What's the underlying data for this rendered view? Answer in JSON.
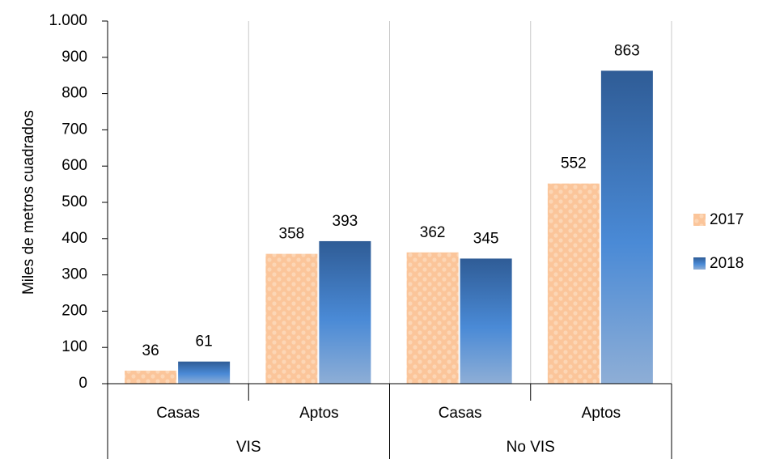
{
  "chart_data": {
    "type": "bar",
    "y_axis_label": "Miles de metros cuadrados",
    "groups": [
      {
        "name": "VIS",
        "categories": [
          "Casas",
          "Aptos"
        ]
      },
      {
        "name": "No VIS",
        "categories": [
          "Casas",
          "Aptos"
        ]
      }
    ],
    "series": [
      {
        "name": "2017",
        "color": "#fbc59a",
        "values": [
          36,
          358,
          362,
          552
        ]
      },
      {
        "name": "2018",
        "color": "#3f7fc8",
        "values": [
          61,
          393,
          345,
          863
        ]
      }
    ],
    "ylim": [
      0,
      1000
    ],
    "yticks": [
      0,
      100,
      200,
      300,
      400,
      500,
      600,
      700,
      800,
      900,
      {
        "value": 1000,
        "label": "1.000"
      }
    ],
    "grid": true,
    "legend": "right"
  }
}
